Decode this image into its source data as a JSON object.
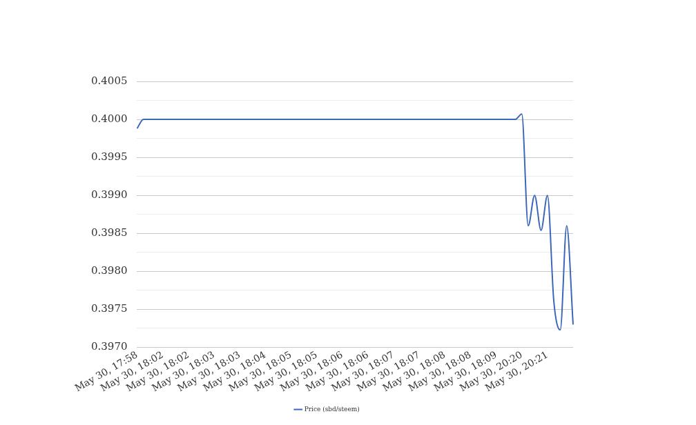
{
  "chart_data": {
    "type": "line",
    "categories": [
      "May 30, 17:58",
      null,
      null,
      null,
      "May 30, 18:02",
      null,
      null,
      null,
      "May 30, 18:02",
      null,
      null,
      null,
      "May 30, 18:03",
      null,
      null,
      null,
      "May 30, 18:03",
      null,
      null,
      null,
      "May 30, 18:04",
      null,
      null,
      null,
      "May 30, 18:05",
      null,
      null,
      null,
      "May 30, 18:05",
      null,
      null,
      null,
      "May 30, 18:06",
      null,
      null,
      null,
      "May 30, 18:06",
      null,
      null,
      null,
      "May 30, 18:07",
      null,
      null,
      null,
      "May 30, 18:07",
      null,
      null,
      null,
      "May 30, 18:08",
      null,
      null,
      null,
      "May 30, 18:08",
      null,
      null,
      null,
      "May 30, 18:09",
      null,
      null,
      null,
      "May 30, 20:20",
      null,
      null,
      null,
      "May 30, 20:21",
      null,
      null,
      null,
      null
    ],
    "series": [
      {
        "name": "Price (sbd/steem)",
        "color": "#3a67b9",
        "values": [
          0.39988,
          0.4,
          0.4,
          0.4,
          0.4,
          0.4,
          0.4,
          0.4,
          0.4,
          0.4,
          0.4,
          0.4,
          0.4,
          0.4,
          0.4,
          0.4,
          0.4,
          0.4,
          0.4,
          0.4,
          0.4,
          0.4,
          0.4,
          0.4,
          0.4,
          0.4,
          0.4,
          0.4,
          0.4,
          0.4,
          0.4,
          0.4,
          0.4,
          0.4,
          0.4,
          0.4,
          0.4,
          0.4,
          0.4,
          0.4,
          0.4,
          0.4,
          0.4,
          0.4,
          0.4,
          0.4,
          0.4,
          0.4,
          0.4,
          0.4,
          0.4,
          0.4,
          0.4,
          0.4,
          0.4,
          0.4,
          0.4,
          0.4,
          0.4,
          0.4,
          0.40007,
          0.3986,
          0.399,
          0.39854,
          0.399,
          0.3976,
          0.39723,
          0.3986,
          0.3973
        ]
      }
    ],
    "ylim": [
      0.397,
      0.4005
    ],
    "yticks": [
      {
        "value": 0.397,
        "label": "0.3970"
      },
      {
        "value": 0.39725,
        "label": null
      },
      {
        "value": 0.3975,
        "label": "0.3975"
      },
      {
        "value": 0.39775,
        "label": null
      },
      {
        "value": 0.398,
        "label": "0.3980"
      },
      {
        "value": 0.39825,
        "label": null
      },
      {
        "value": 0.3985,
        "label": "0.3985"
      },
      {
        "value": 0.39875,
        "label": null
      },
      {
        "value": 0.399,
        "label": "0.3990"
      },
      {
        "value": 0.39925,
        "label": null
      },
      {
        "value": 0.3995,
        "label": "0.3995"
      },
      {
        "value": 0.39975,
        "label": null
      },
      {
        "value": 0.4,
        "label": "0.4000"
      },
      {
        "value": 0.40025,
        "label": null
      },
      {
        "value": 0.4005,
        "label": "0.4005"
      }
    ],
    "grid": "y",
    "legend": "bottom",
    "marker": "none",
    "line_style": "solid"
  }
}
